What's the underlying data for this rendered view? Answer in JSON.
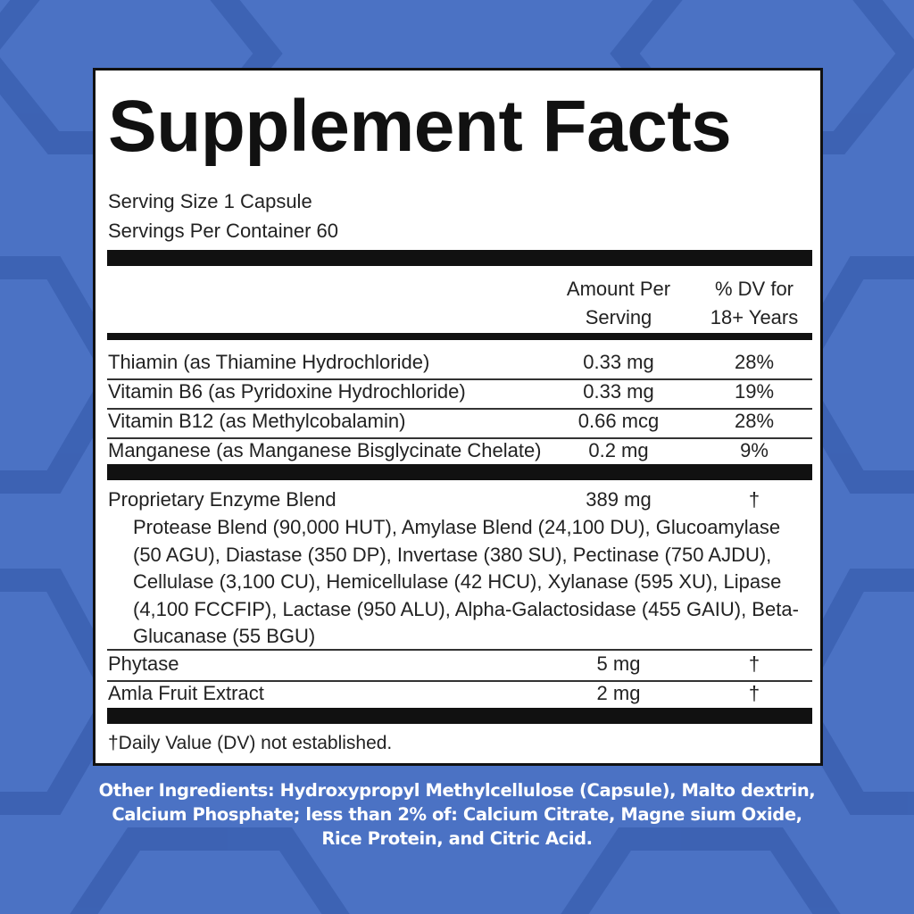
{
  "colors": {
    "background": "#4b72c4",
    "hex_dark": "#3a5fb0",
    "panel": "#ffffff",
    "text": "#222222"
  },
  "title": "Supplement Facts",
  "serving_size": "Serving Size 1 Capsule",
  "servings_per_container": "Servings Per Container 60",
  "headers": {
    "amount_line1": "Amount Per",
    "amount_line2": "Serving",
    "dv_line1": "% DV for",
    "dv_line2": "18+ Years"
  },
  "vitamins": [
    {
      "name": "Thiamin (as Thiamine Hydrochloride)",
      "amount": "0.33 mg",
      "dv": "28%"
    },
    {
      "name": "Vitamin B6 (as Pyridoxine Hydrochloride)",
      "amount": "0.33 mg",
      "dv": "19%"
    },
    {
      "name": "Vitamin B12 (as Methylcobalamin)",
      "amount": "0.66 mcg",
      "dv": "28%"
    },
    {
      "name": "Manganese (as Manganese Bisglycinate Chelate)",
      "amount": "0.2 mg",
      "dv": "9%"
    }
  ],
  "blend": {
    "name": "Proprietary Enzyme Blend",
    "amount": "389 mg",
    "dv": "†",
    "ingredients": "Protease Blend (90,000 HUT), Amylase Blend (24,100 DU), Glucoamylase (50 AGU), Diastase (350 DP), Invertase (380 SU), Pectinase (750 AJDU), Cellulase (3,100 CU), Hemicellulase (42 HCU), Xylanase (595 XU), Lipase (4,100 FCCFIP), Lactase (950 ALU), Alpha-Galactosidase (455 GAIU), Beta-Glucanase (55 BGU)"
  },
  "others": [
    {
      "name": "Phytase",
      "amount": "5 mg",
      "dv": "†"
    },
    {
      "name": "Amla Fruit Extract",
      "amount": "2 mg",
      "dv": "†"
    }
  ],
  "footnote": "†Daily Value (DV) not established.",
  "other_ingredients": "Other Ingredients: Hydroxypropyl Methylcellulose (Capsule), Malto dextrin, Calcium Phosphate; less than 2% of: Calcium Citrate, Magne sium Oxide, Rice Protein, and Citric Acid."
}
